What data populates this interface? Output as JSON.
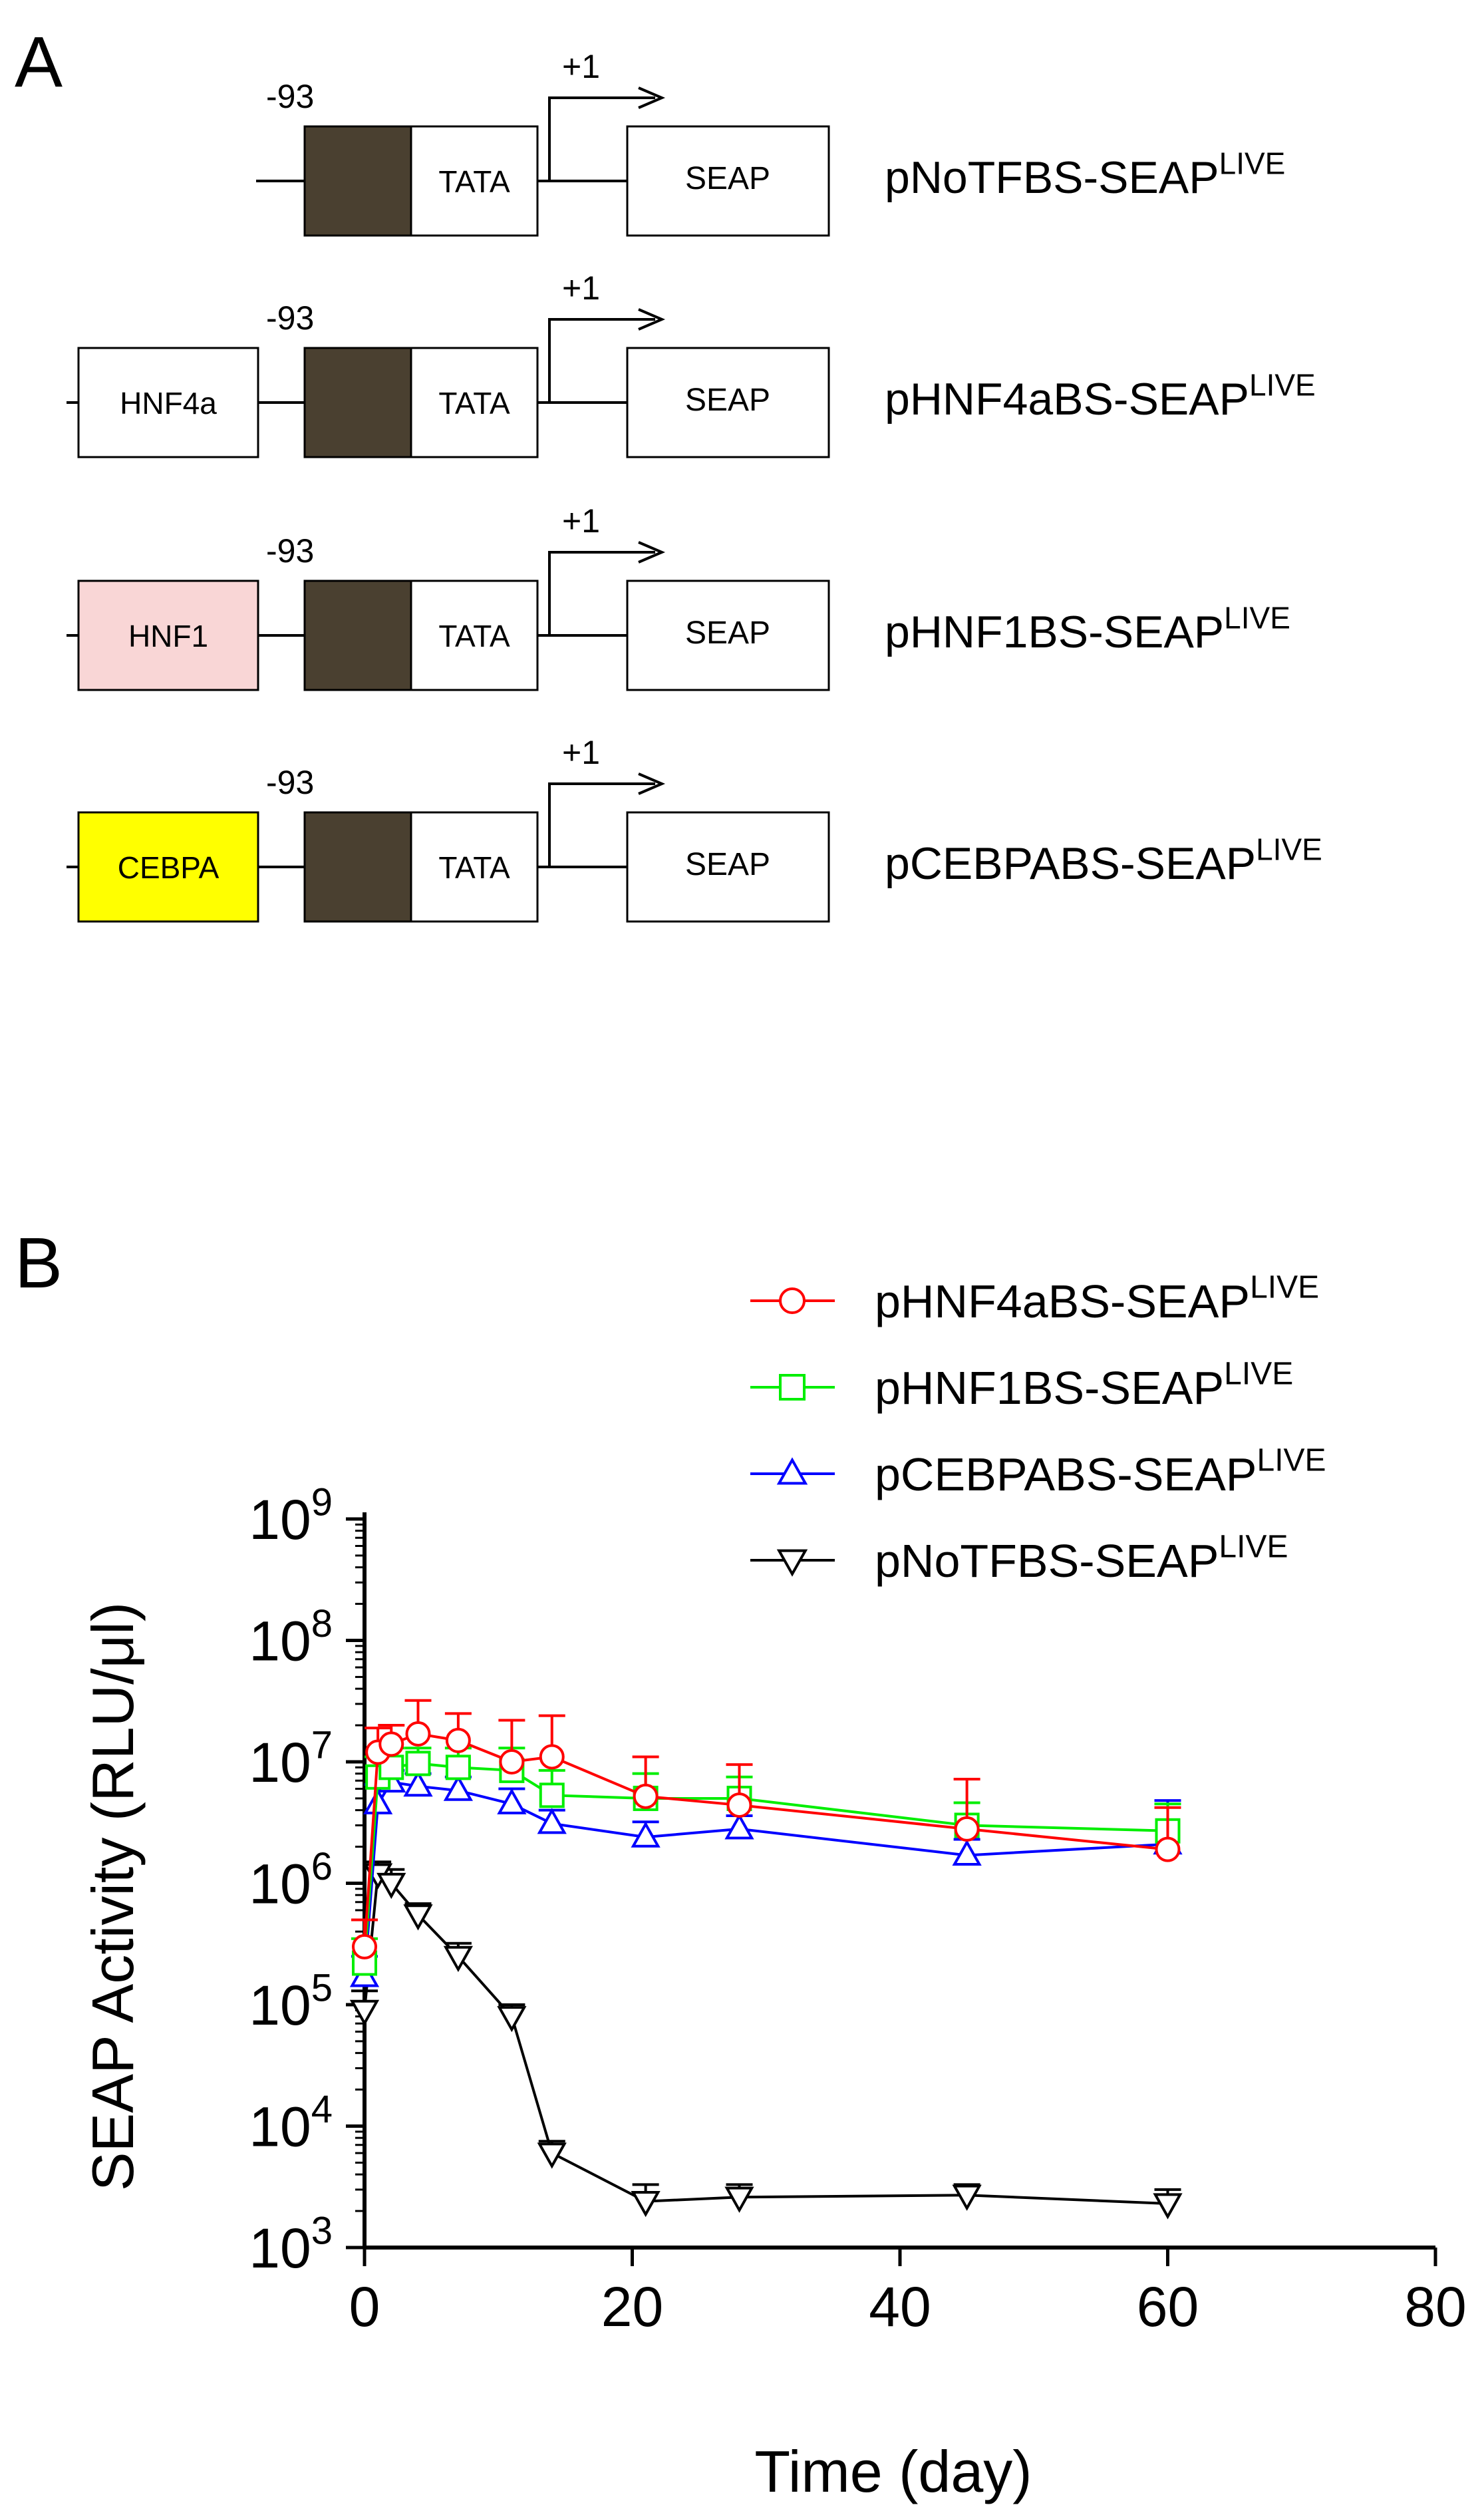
{
  "panel_a": {
    "panel_letter": "A",
    "constructs": [
      {
        "name": "pNoTFBS-SEAP",
        "superscript": "LIVE",
        "tfbs": null,
        "tfbs_color": null,
        "pos_label": "-93",
        "core_label": "TATA",
        "tss_label": "+1",
        "reporter_label": "SEAP"
      },
      {
        "name": "pHNF4aBS-SEAP",
        "superscript": "LIVE",
        "tfbs": "HNF4a",
        "tfbs_color": "#ffffff",
        "pos_label": "-93",
        "core_label": "TATA",
        "tss_label": "+1",
        "reporter_label": "SEAP"
      },
      {
        "name": "pHNF1BS-SEAP",
        "superscript": "LIVE",
        "tfbs": "HNF1",
        "tfbs_color": "#f9d6d6",
        "pos_label": "-93",
        "core_label": "TATA",
        "tss_label": "+1",
        "reporter_label": "SEAP"
      },
      {
        "name": "pCEBPABS-SEAP",
        "superscript": "LIVE",
        "tfbs": "CEBPA",
        "tfbs_color": "#ffff00",
        "pos_label": "-93",
        "core_label": "TATA",
        "tss_label": "+1",
        "reporter_label": "SEAP"
      }
    ],
    "promoter_block_color": "#4a4030"
  },
  "chart_data": {
    "panel_letter": "B",
    "type": "line",
    "xlabel": "Time (day)",
    "ylabel": "SEAP Activity (RLU/μl)",
    "yscale": "log",
    "xlim": [
      0,
      80
    ],
    "ylim": [
      1000,
      1000000000
    ],
    "xticks": [
      "0",
      "20",
      "40",
      "60",
      "80"
    ],
    "yticks": [
      {
        "base": "10",
        "exp": "3"
      },
      {
        "base": "10",
        "exp": "4"
      },
      {
        "base": "10",
        "exp": "5"
      },
      {
        "base": "10",
        "exp": "6"
      },
      {
        "base": "10",
        "exp": "7"
      },
      {
        "base": "10",
        "exp": "8"
      },
      {
        "base": "10",
        "exp": "9"
      }
    ],
    "legend_position": "top-right",
    "series": [
      {
        "name": "pHNF4aBS-SEAP",
        "superscript": "LIVE",
        "color": "#ff0000",
        "marker": "circle",
        "x": [
          0,
          1,
          2,
          4,
          7,
          11,
          14,
          21,
          28,
          45,
          60
        ],
        "y": [
          300000,
          12000000,
          14000000,
          17000000,
          15000000,
          10000000,
          11000000,
          5200000,
          4400000,
          2800000,
          1900000
        ],
        "err_upper": [
          500000,
          19000000,
          20000000,
          32000000,
          25000000,
          22000000,
          24000000,
          11000000,
          9500000,
          7200000,
          4200000
        ]
      },
      {
        "name": "pHNF1BS-SEAP",
        "superscript": "LIVE",
        "color": "#00ee00",
        "marker": "square",
        "x": [
          0,
          1,
          2,
          4,
          7,
          11,
          14,
          21,
          28,
          45,
          60
        ],
        "y": [
          220000,
          7500000,
          9000000,
          9700000,
          9000000,
          8500000,
          5300000,
          5000000,
          5000000,
          3000000,
          2700000
        ],
        "err_upper": [
          350000,
          11000000,
          13000000,
          13000000,
          13000000,
          13000000,
          8500000,
          8000000,
          7500000,
          4600000,
          4500000
        ]
      },
      {
        "name": "pCEBPABS-SEAP",
        "superscript": "LIVE",
        "color": "#0000ff",
        "marker": "triangle-up",
        "x": [
          0,
          1,
          2,
          4,
          7,
          11,
          14,
          21,
          28,
          45,
          60
        ],
        "y": [
          170000,
          4500000,
          6800000,
          6300000,
          5800000,
          4500000,
          3100000,
          2400000,
          2800000,
          1700000,
          2100000
        ],
        "err_upper": [
          250000,
          6500000,
          8500000,
          8000000,
          7500000,
          6000000,
          4000000,
          3200000,
          3600000,
          2300000,
          4800000
        ]
      },
      {
        "name": "pNoTFBS-SEAP",
        "superscript": "LIVE",
        "color": "#000000",
        "marker": "triangle-down",
        "x": [
          0,
          1,
          2,
          4,
          7,
          11,
          14,
          21,
          28,
          45,
          60
        ],
        "y": [
          90000,
          1200000,
          1000000,
          550000,
          250000,
          80000,
          6000,
          2400,
          2600,
          2700,
          2300
        ],
        "err_upper": [
          130000,
          1500000,
          1300000,
          680000,
          320000,
          100000,
          7500,
          3300,
          3300,
          3300,
          3000
        ]
      }
    ]
  }
}
